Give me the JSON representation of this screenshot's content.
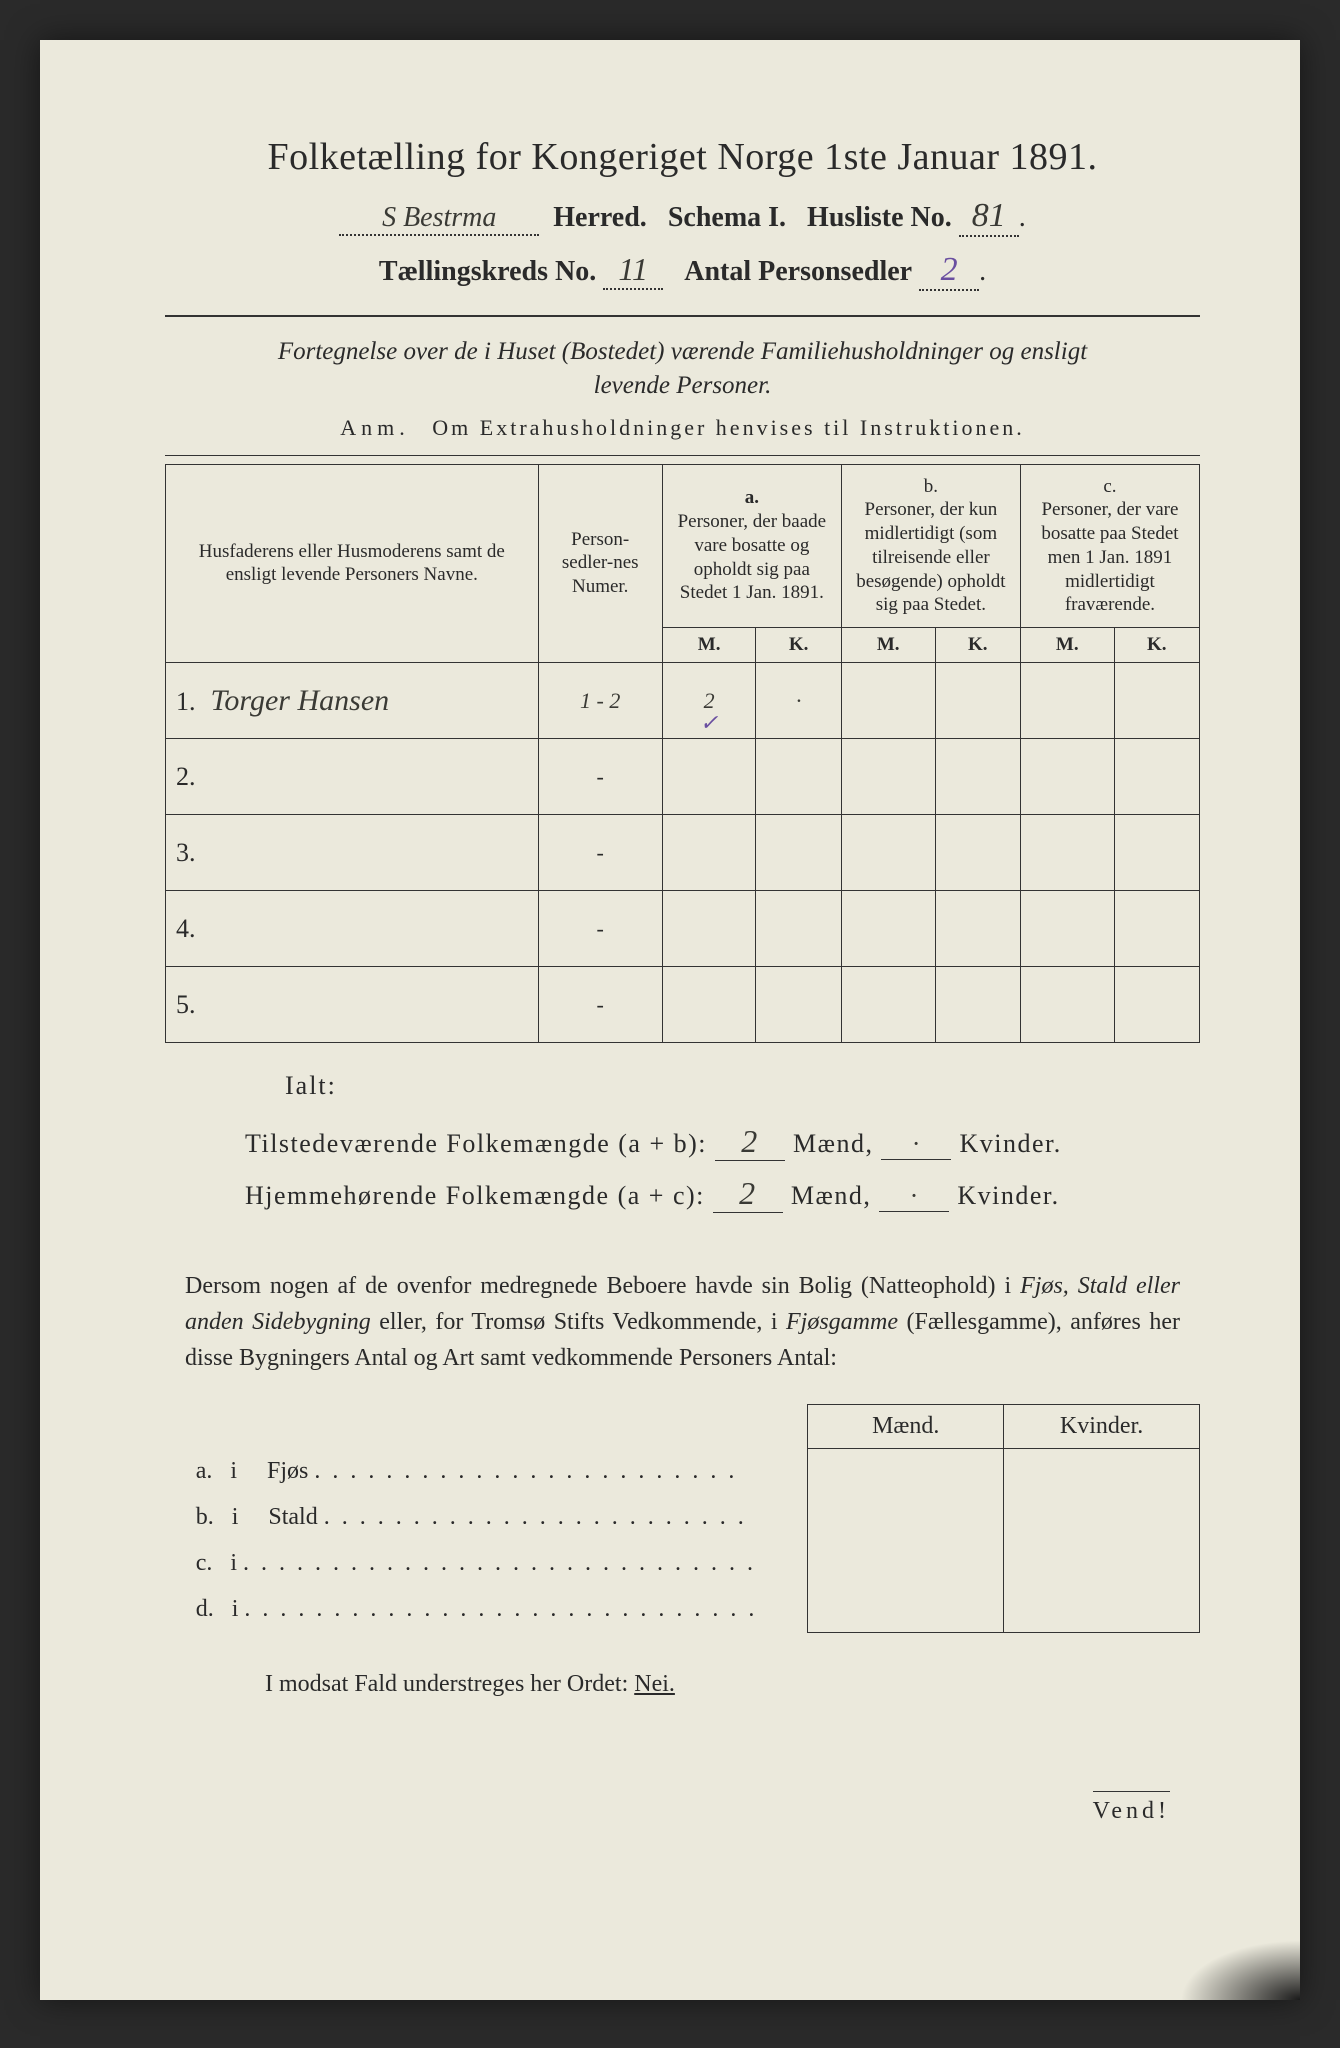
{
  "colors": {
    "paper": "#ebe9dc",
    "ink": "#2a2a2a",
    "handwriting": "#3a3a35",
    "pencil_accent": "#6a4fa0",
    "background": "#2a2a2a"
  },
  "typography": {
    "title_pt": 38,
    "subhead_pt": 28,
    "body_pt": 24,
    "table_hdr_pt": 19,
    "family_serif": "Georgia / Times",
    "handwriting_family": "cursive"
  },
  "header": {
    "title": "Folketælling for Kongeriget Norge 1ste Januar 1891.",
    "herred_hw": "S Bestrma",
    "herred_label": "Herred.",
    "schema_label": "Schema I.",
    "husliste_label": "Husliste No.",
    "husliste_no_hw": "81",
    "kreds_label": "Tællingskreds No.",
    "kreds_no_hw": "11",
    "antal_label": "Antal Personsedler",
    "antal_hw": "2"
  },
  "subtitle": {
    "line1": "Fortegnelse over de i Huset (Bostedet) værende Familiehusholdninger og ensligt",
    "line2": "levende Personer.",
    "anm_label": "Anm.",
    "anm_text": "Om Extrahusholdninger henvises til Instruktionen."
  },
  "table": {
    "col_names": "Husfaderens eller Husmoderens samt de ensligt levende Personers Navne.",
    "col_personsedler": "Person-sedler-nes Numer.",
    "col_a_label": "a.",
    "col_a_text": "Personer, der baade vare bosatte og opholdt sig paa Stedet 1 Jan. 1891.",
    "col_b_label": "b.",
    "col_b_text": "Personer, der kun midlertidigt (som tilreisende eller besøgende) opholdt sig paa Stedet.",
    "col_c_label": "c.",
    "col_c_text": "Personer, der vare bosatte paa Stedet men 1 Jan. 1891 midlertidigt fraværende.",
    "mk_m": "M.",
    "mk_k": "K.",
    "rows": [
      {
        "num": "1.",
        "name_hw": "Torger Hansen",
        "psn_hw": "1 - 2",
        "a_m_hw": "2",
        "a_m_tick": "✓",
        "a_k_hw": "·"
      },
      {
        "num": "2.",
        "psn_hw": "-"
      },
      {
        "num": "3.",
        "psn_hw": "-"
      },
      {
        "num": "4.",
        "psn_hw": "-"
      },
      {
        "num": "5.",
        "psn_hw": "-"
      }
    ]
  },
  "totals": {
    "ialt": "Ialt:",
    "line_ab_label": "Tilstedeværende Folkemængde (a + b):",
    "line_ac_label": "Hjemmehørende Folkemængde (a + c):",
    "ab_m_hw": "2",
    "ab_k_hw": "·",
    "ac_m_hw": "2",
    "ac_k_hw": "·",
    "maend": "Mænd,",
    "kvinder": "Kvinder."
  },
  "paragraph": {
    "text_before": "Dersom nogen af de ovenfor medregnede Beboere havde sin Bolig (Natteophold) i ",
    "em1": "Fjøs, Stald eller anden Sidebygning",
    "text_mid": " eller, for Tromsø Stifts Vedkommende, i ",
    "em2": "Fjøsgamme",
    "paren": " (Fællesgamme), anføres her disse Bygningers Antal og Art samt vedkommende Personers Antal:"
  },
  "mk_box": {
    "maend": "Mænd.",
    "kvinder": "Kvinder.",
    "rows": [
      {
        "key": "a.",
        "i": "i",
        "label": "Fjøs"
      },
      {
        "key": "b.",
        "i": "i",
        "label": "Stald"
      },
      {
        "key": "c.",
        "i": "i",
        "label": ""
      },
      {
        "key": "d.",
        "i": "i",
        "label": ""
      }
    ]
  },
  "footer": {
    "modsat": "I modsat Fald understreges her Ordet: ",
    "nei": "Nei.",
    "vend": "Vend!"
  }
}
